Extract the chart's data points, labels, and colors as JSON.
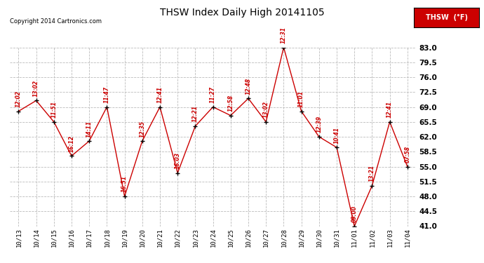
{
  "title": "THSW Index Daily High 20141105",
  "copyright": "Copyright 2014 Cartronics.com",
  "legend_label": "THSW  (°F)",
  "ylim": [
    41.0,
    83.0
  ],
  "yticks": [
    41.0,
    44.5,
    48.0,
    51.5,
    55.0,
    58.5,
    62.0,
    65.5,
    69.0,
    72.5,
    76.0,
    79.5,
    83.0
  ],
  "dates": [
    "10/13",
    "10/14",
    "10/15",
    "10/16",
    "10/17",
    "10/18",
    "10/19",
    "10/20",
    "10/21",
    "10/22",
    "10/23",
    "10/24",
    "10/25",
    "10/26",
    "10/27",
    "10/28",
    "10/29",
    "10/30",
    "10/31",
    "11/01",
    "11/02",
    "11/03",
    "11/04"
  ],
  "values": [
    68.0,
    70.5,
    65.5,
    57.5,
    61.0,
    69.0,
    48.0,
    61.0,
    69.0,
    53.5,
    64.5,
    69.0,
    67.0,
    71.0,
    65.5,
    83.0,
    68.0,
    62.0,
    59.5,
    41.0,
    50.5,
    65.5,
    55.0
  ],
  "times": [
    "12:02",
    "13:02",
    "11:51",
    "16:12",
    "14:11",
    "11:47",
    "16:51",
    "12:35",
    "12:41",
    "16:03",
    "12:21",
    "11:27",
    "12:58",
    "12:48",
    "13:02",
    "12:31",
    "11:01",
    "12:39",
    "10:41",
    "09:00",
    "13:21",
    "12:41",
    "07:58"
  ],
  "line_color": "#cc0000",
  "marker_color": "#000000",
  "bg_color": "#ffffff",
  "grid_color": "#bbbbbb",
  "text_color": "#cc0000",
  "title_color": "#000000",
  "legend_bg": "#cc0000",
  "legend_text": "#ffffff",
  "fig_width": 6.9,
  "fig_height": 3.75,
  "dpi": 100
}
